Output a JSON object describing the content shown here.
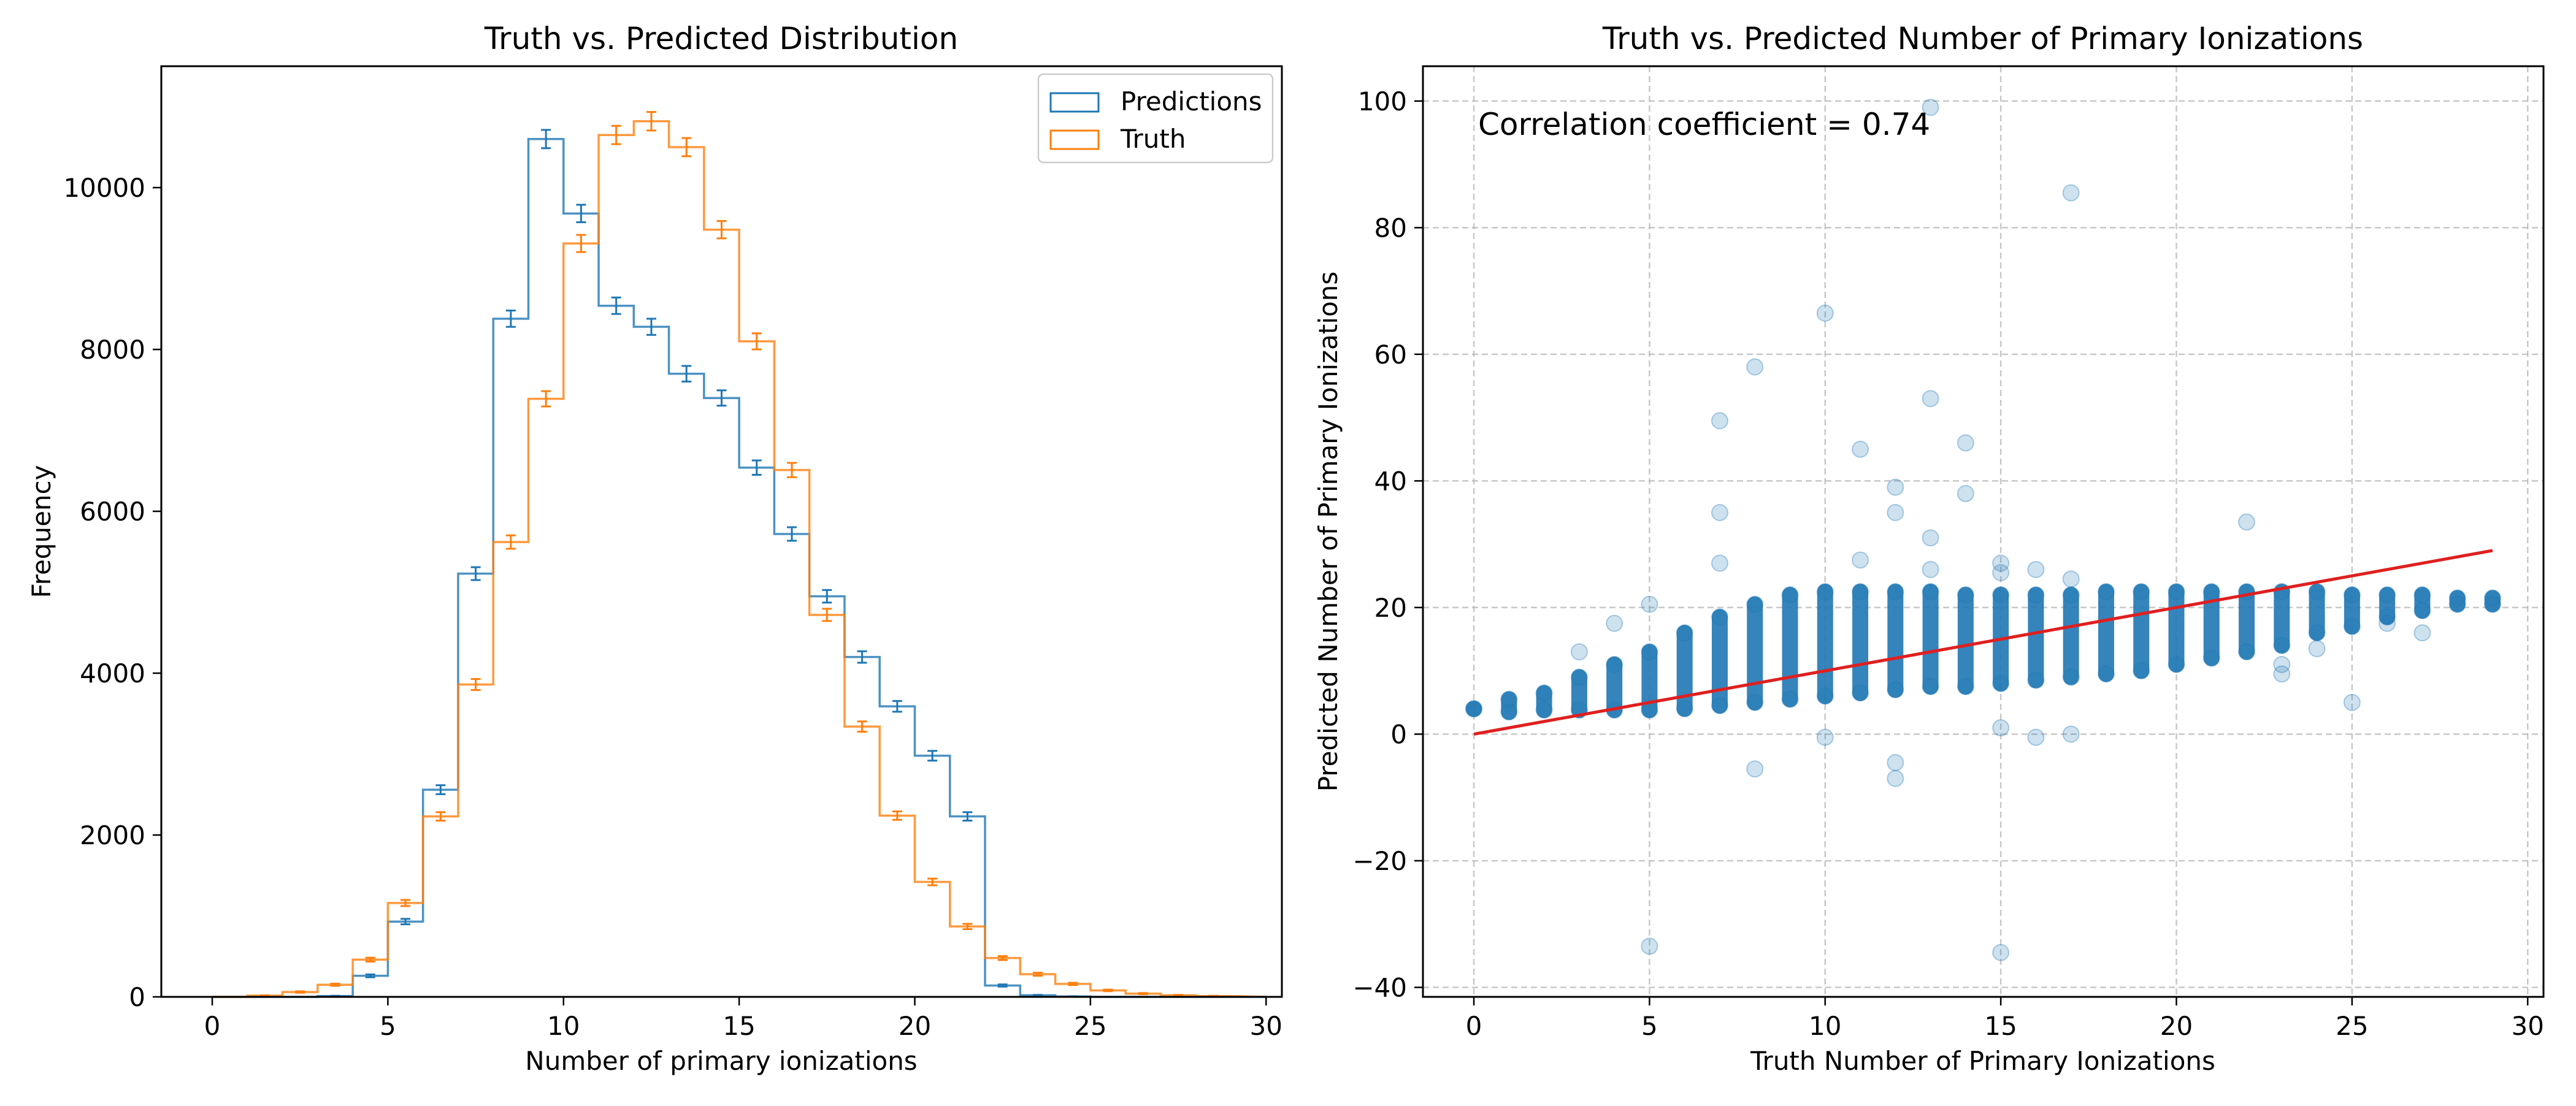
{
  "chart_data": [
    {
      "type": "histogram",
      "title": "Truth vs. Predicted Distribution",
      "xlabel": "Number of primary ionizations",
      "ylabel": "Frequency",
      "xlim": [
        -1.45,
        30.45
      ],
      "ylim": [
        0,
        11500
      ],
      "xticks": [
        0,
        5,
        10,
        15,
        20,
        25,
        30
      ],
      "yticks": [
        0,
        2000,
        4000,
        6000,
        8000,
        10000
      ],
      "grid": false,
      "legend": "top-right",
      "bin_edges": [
        0,
        1,
        2,
        3,
        4,
        5,
        6,
        7,
        8,
        9,
        10,
        11,
        12,
        13,
        14,
        15,
        16,
        17,
        18,
        19,
        20,
        21,
        22,
        23,
        24,
        25,
        26,
        27,
        28,
        29
      ],
      "series": [
        {
          "name": "Predictions",
          "color": "#1f77b4",
          "values": [
            0,
            0,
            0,
            10,
            260,
            930,
            2560,
            5230,
            8380,
            10600,
            9680,
            8540,
            8280,
            7700,
            7400,
            6540,
            5720,
            4950,
            4200,
            3590,
            2980,
            2230,
            140,
            20,
            5,
            0,
            0,
            0,
            0
          ]
        },
        {
          "name": "Truth",
          "color": "#ff7f0e",
          "values": [
            0,
            15,
            60,
            150,
            460,
            1160,
            2230,
            3860,
            5620,
            7390,
            9310,
            10650,
            10820,
            10500,
            9480,
            8100,
            6510,
            4720,
            3340,
            2240,
            1420,
            870,
            480,
            280,
            160,
            80,
            40,
            20,
            10
          ]
        }
      ]
    },
    {
      "type": "scatter",
      "title": "Truth vs. Predicted Number of Primary Ionizations",
      "xlabel": "Truth Number of Primary Ionizations",
      "ylabel": "Predicted Number of Primary Ionizations",
      "xlim": [
        -1.45,
        30.45
      ],
      "ylim": [
        -41.5,
        105.5
      ],
      "xticks": [
        0,
        5,
        10,
        15,
        20,
        25,
        30
      ],
      "yticks": [
        -40,
        -20,
        0,
        20,
        40,
        60,
        80,
        100
      ],
      "grid": true,
      "annotation": "Correlation coefficient = 0.74",
      "point_color": "#1f77b4",
      "fit_color": "#e01f1f",
      "fit_line": [
        [
          0,
          0
        ],
        [
          29,
          29
        ]
      ],
      "columns": [
        {
          "x": 0,
          "ymin": 4,
          "ymax": 4
        },
        {
          "x": 1,
          "ymin": 3.5,
          "ymax": 5.5
        },
        {
          "x": 2,
          "ymin": 3.8,
          "ymax": 6.5
        },
        {
          "x": 3,
          "ymin": 3.8,
          "ymax": 9
        },
        {
          "x": 4,
          "ymin": 3.8,
          "ymax": 11
        },
        {
          "x": 5,
          "ymin": 3.8,
          "ymax": 13
        },
        {
          "x": 6,
          "ymin": 4,
          "ymax": 16
        },
        {
          "x": 7,
          "ymin": 4.5,
          "ymax": 18.5
        },
        {
          "x": 8,
          "ymin": 5,
          "ymax": 20.5
        },
        {
          "x": 9,
          "ymin": 5.5,
          "ymax": 22
        },
        {
          "x": 10,
          "ymin": 6,
          "ymax": 22.5
        },
        {
          "x": 11,
          "ymin": 6.5,
          "ymax": 22.5
        },
        {
          "x": 12,
          "ymin": 7,
          "ymax": 22.5
        },
        {
          "x": 13,
          "ymin": 7.5,
          "ymax": 22.5
        },
        {
          "x": 14,
          "ymin": 7.5,
          "ymax": 22
        },
        {
          "x": 15,
          "ymin": 8,
          "ymax": 22
        },
        {
          "x": 16,
          "ymin": 8.5,
          "ymax": 22
        },
        {
          "x": 17,
          "ymin": 9,
          "ymax": 22
        },
        {
          "x": 18,
          "ymin": 9.5,
          "ymax": 22.5
        },
        {
          "x": 19,
          "ymin": 10,
          "ymax": 22.5
        },
        {
          "x": 20,
          "ymin": 11,
          "ymax": 22.5
        },
        {
          "x": 21,
          "ymin": 12,
          "ymax": 22.5
        },
        {
          "x": 22,
          "ymin": 13,
          "ymax": 22.5
        },
        {
          "x": 23,
          "ymin": 14,
          "ymax": 22.5
        },
        {
          "x": 24,
          "ymin": 16,
          "ymax": 22.5
        },
        {
          "x": 25,
          "ymin": 17,
          "ymax": 22
        },
        {
          "x": 26,
          "ymin": 18.5,
          "ymax": 22
        },
        {
          "x": 27,
          "ymin": 19.5,
          "ymax": 22
        },
        {
          "x": 28,
          "ymin": 20.5,
          "ymax": 21.5
        },
        {
          "x": 29,
          "ymin": 20.5,
          "ymax": 21.5
        }
      ],
      "outliers": [
        {
          "x": 5,
          "y": -33.5
        },
        {
          "x": 5,
          "y": 20.5
        },
        {
          "x": 4,
          "y": 17.5
        },
        {
          "x": 3,
          "y": 13
        },
        {
          "x": 7,
          "y": 49.5
        },
        {
          "x": 7,
          "y": 35
        },
        {
          "x": 7,
          "y": 27
        },
        {
          "x": 8,
          "y": 58
        },
        {
          "x": 8,
          "y": -5.5
        },
        {
          "x": 10,
          "y": 66.5
        },
        {
          "x": 10,
          "y": -0.5
        },
        {
          "x": 11,
          "y": 45
        },
        {
          "x": 11,
          "y": 27.5
        },
        {
          "x": 12,
          "y": 39
        },
        {
          "x": 12,
          "y": 35
        },
        {
          "x": 12,
          "y": -4.5
        },
        {
          "x": 12,
          "y": -7
        },
        {
          "x": 13,
          "y": 99
        },
        {
          "x": 13,
          "y": 53
        },
        {
          "x": 13,
          "y": 31
        },
        {
          "x": 13,
          "y": 26
        },
        {
          "x": 14,
          "y": 46
        },
        {
          "x": 14,
          "y": 38
        },
        {
          "x": 15,
          "y": 27
        },
        {
          "x": 15,
          "y": 25.5
        },
        {
          "x": 15,
          "y": 1
        },
        {
          "x": 15,
          "y": -34.5
        },
        {
          "x": 16,
          "y": 26
        },
        {
          "x": 16,
          "y": -0.5
        },
        {
          "x": 17,
          "y": 85.5
        },
        {
          "x": 17,
          "y": 24.5
        },
        {
          "x": 17,
          "y": 0
        },
        {
          "x": 22,
          "y": 33.5
        },
        {
          "x": 23,
          "y": 11
        },
        {
          "x": 23,
          "y": 9.5
        },
        {
          "x": 24,
          "y": 13.5
        },
        {
          "x": 25,
          "y": 5
        },
        {
          "x": 26,
          "y": 17.5
        },
        {
          "x": 27,
          "y": 16
        }
      ]
    }
  ]
}
